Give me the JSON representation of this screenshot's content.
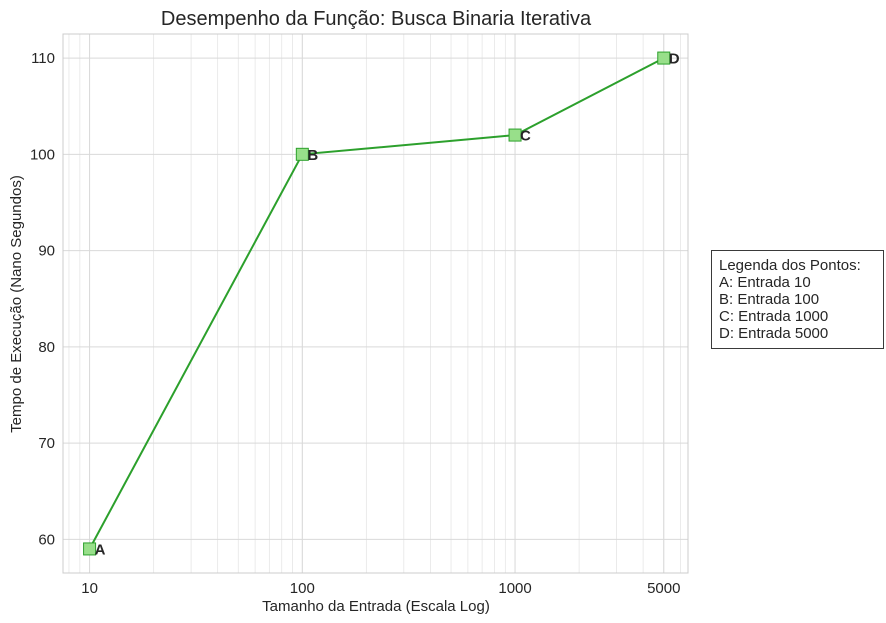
{
  "chart_data": {
    "type": "line",
    "title": "Desempenho da Função: Busca Binaria Iterativa",
    "xlabel": "Tamanho da Entrada (Escala Log)",
    "ylabel": "Tempo de Execução (Nano Segundos)",
    "x_scale": "log",
    "x": [
      10,
      100,
      1000,
      5000
    ],
    "xlim": [
      7.5,
      6500
    ],
    "xticks": [
      10,
      100,
      1000,
      5000
    ],
    "xtick_labels": [
      "10",
      "100",
      "1000",
      "5000"
    ],
    "ylim": [
      56.5,
      112.5
    ],
    "yticks": [
      60,
      70,
      80,
      90,
      100,
      110
    ],
    "grid": true,
    "series": [
      {
        "values": [
          59,
          100,
          102,
          110
        ],
        "point_labels": [
          "A",
          "B",
          "C",
          "D"
        ],
        "color": "#2ca02c",
        "marker_color": "#98df8a"
      }
    ],
    "legend": {
      "placement": "right",
      "title": "Legenda dos Pontos:",
      "items": [
        "A: Entrada 10",
        "B: Entrada 100",
        "C: Entrada 1000",
        "D: Entrada 5000"
      ]
    }
  }
}
